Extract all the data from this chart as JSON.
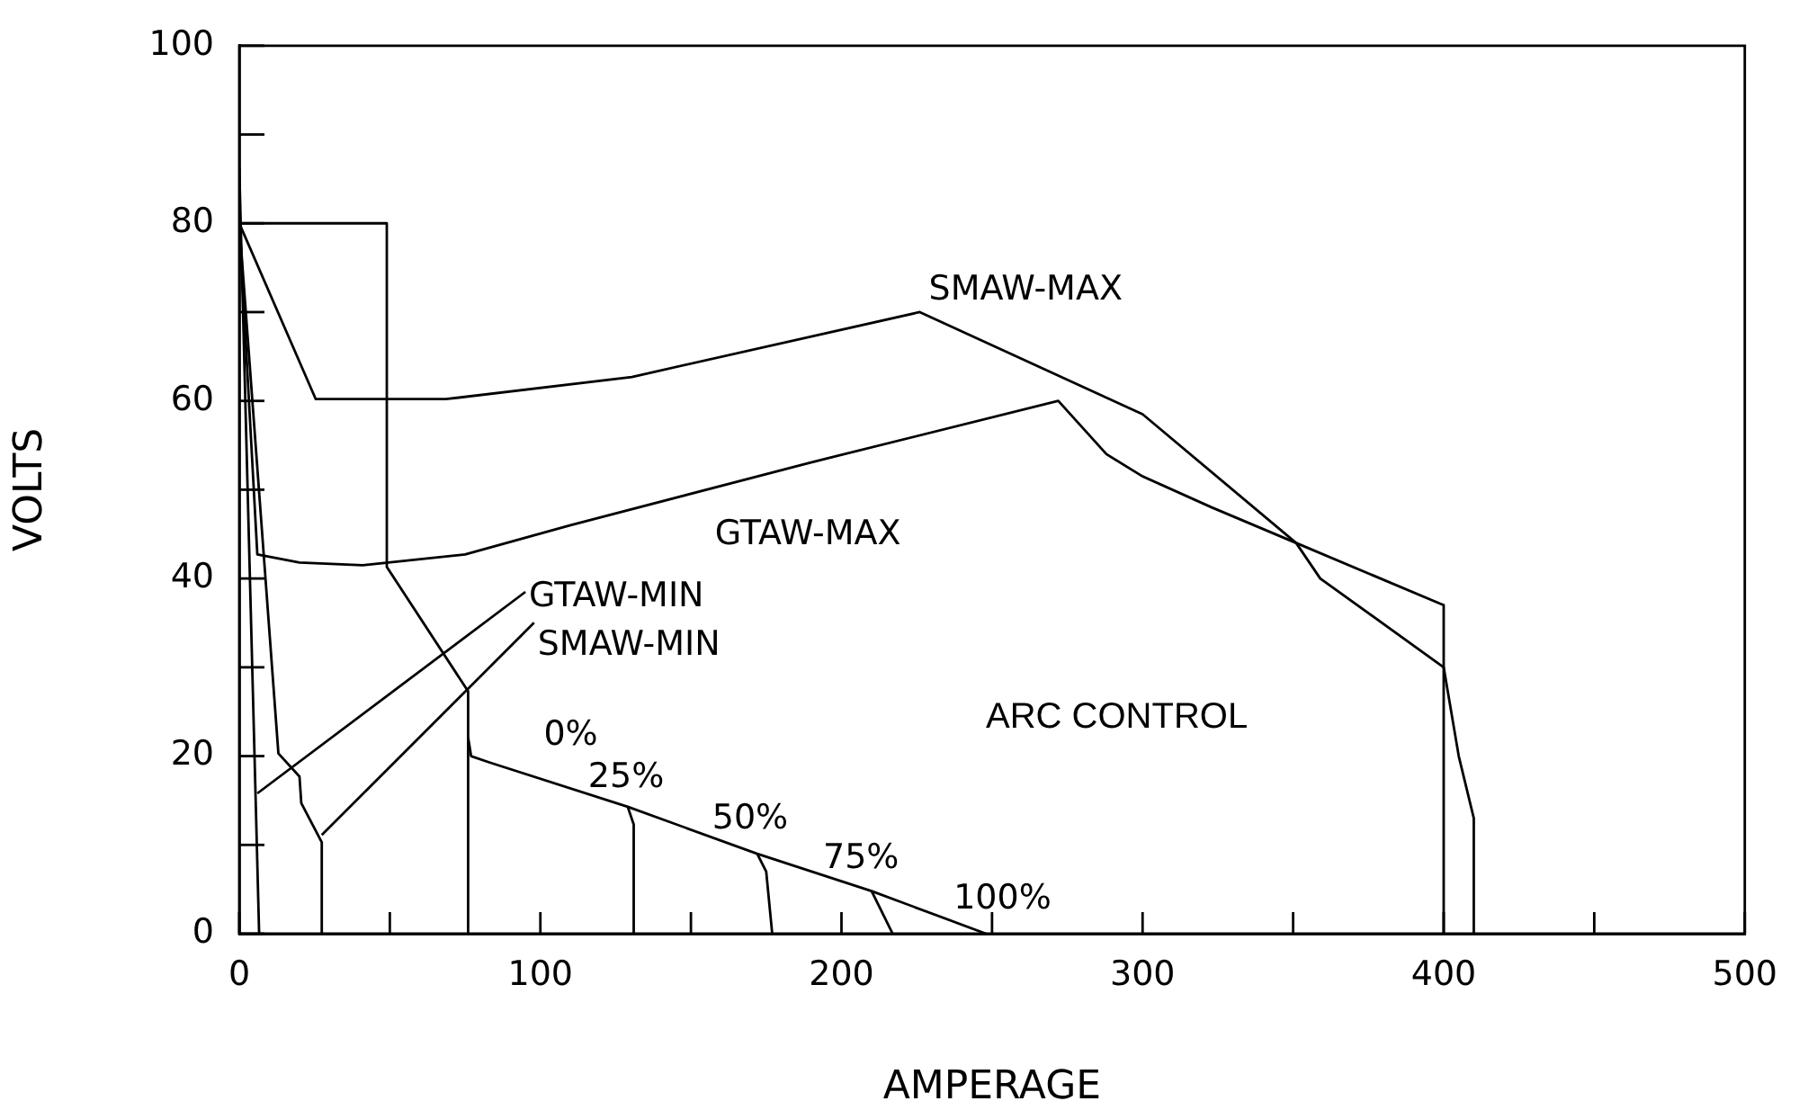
{
  "chart_data": {
    "type": "line",
    "xlabel": "AMPERAGE",
    "ylabel": "VOLTS",
    "xlim": [
      0,
      500
    ],
    "ylim": [
      0,
      100
    ],
    "xticks": [
      0,
      {
        "value": 50,
        "label": null
      },
      100,
      {
        "value": 150,
        "label": null
      },
      200,
      {
        "value": 250,
        "label": null
      },
      300,
      {
        "value": 350,
        "label": null
      },
      400,
      {
        "value": 450,
        "label": null
      },
      500
    ],
    "yticks": [
      0,
      {
        "value": 10,
        "label": null
      },
      20,
      {
        "value": 30,
        "label": null
      },
      40,
      {
        "value": 50,
        "label": null
      },
      60,
      {
        "value": 70,
        "label": null
      },
      80,
      {
        "value": 90,
        "label": null
      },
      100
    ],
    "grid": false,
    "legend": false,
    "marker": "none",
    "line_style": "solid",
    "series": [
      {
        "name": "SMAW-MAX",
        "color": "#000000",
        "x": [
          0,
          25.4,
          68.6,
          130.4,
          226,
          300,
          351,
          359,
          400,
          405,
          410,
          410
        ],
        "values": [
          80,
          60.2,
          60.2,
          62.7,
          70,
          58.5,
          44,
          40,
          30,
          20,
          13,
          0
        ]
      },
      {
        "name": "GTAW-MAX",
        "color": "#000000",
        "x": [
          0,
          6,
          20,
          41,
          75,
          110,
          189,
          272,
          288,
          300,
          323,
          351,
          400,
          400
        ],
        "values": [
          80,
          42.7,
          41.8,
          41.5,
          42.7,
          46,
          53,
          60,
          54,
          51.5,
          48,
          44,
          37,
          0
        ]
      },
      {
        "name": "GTAW-MIN",
        "color": "#000000",
        "x": [
          0,
          6.6
        ],
        "values": [
          86.3,
          0
        ]
      },
      {
        "name": "SMAW-MIN",
        "color": "#000000",
        "x": [
          0,
          13,
          20,
          20.6,
          27.4,
          27.4
        ],
        "values": [
          80,
          20.3,
          17.7,
          14.7,
          10.3,
          0
        ]
      },
      {
        "color": "#000000",
        "x": [
          0,
          49,
          49,
          76,
          76
        ],
        "values": [
          80,
          80,
          41.3,
          27.3,
          0
        ]
      },
      {
        "color": "#000000",
        "x": [
          76,
          77,
          83,
          129,
          172,
          210,
          248
        ],
        "values": [
          22.1,
          20,
          19.3,
          14.3,
          9,
          4.8,
          0
        ]
      },
      {
        "color": "#000000",
        "x": [
          129,
          131,
          131
        ],
        "values": [
          14.3,
          12.3,
          0
        ]
      },
      {
        "color": "#000000",
        "x": [
          172,
          175,
          177
        ],
        "values": [
          9,
          7,
          0
        ]
      },
      {
        "color": "#000000",
        "x": [
          210,
          217
        ],
        "values": [
          4.8,
          0
        ]
      }
    ],
    "annotations": [
      {
        "text": "0%",
        "x": 76,
        "y": 22.1
      },
      {
        "text": "25%",
        "x": 129,
        "y": 14.3
      },
      {
        "text": "50%",
        "x": 172,
        "y": 9
      },
      {
        "text": "75%",
        "x": 210,
        "y": 4.8
      },
      {
        "text": "100%",
        "x": 248,
        "y": 0
      },
      "ARC CONTROL"
    ]
  }
}
